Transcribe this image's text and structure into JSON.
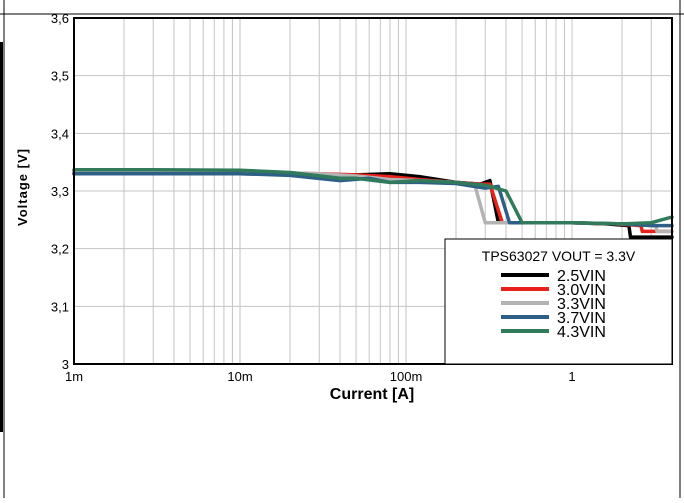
{
  "chart_data": {
    "type": "line",
    "xscale": "log",
    "xlabel": "Current [A]",
    "ylabel": "Voltage [V]",
    "xlim": [
      0.001,
      4
    ],
    "ylim": [
      3.0,
      3.6
    ],
    "grid": true,
    "x_ticks": [
      {
        "value": 0.001,
        "label": "1m"
      },
      {
        "value": 0.01,
        "label": "10m"
      },
      {
        "value": 0.1,
        "label": "100m"
      },
      {
        "value": 1,
        "label": "1"
      }
    ],
    "y_ticks": [
      {
        "value": 3.0,
        "label": "3"
      },
      {
        "value": 3.1,
        "label": "3,1"
      },
      {
        "value": 3.2,
        "label": "3,2"
      },
      {
        "value": 3.3,
        "label": "3,3"
      },
      {
        "value": 3.4,
        "label": "3,4"
      },
      {
        "value": 3.5,
        "label": "3,5"
      },
      {
        "value": 3.6,
        "label": "3,6"
      }
    ],
    "legend": {
      "title": "TPS63027 VOUT = 3.3V",
      "placement": "bottom-right"
    },
    "series": [
      {
        "name": "2.5VIN",
        "color": "#000000",
        "x": [
          0.001,
          0.003,
          0.01,
          0.03,
          0.05,
          0.08,
          0.12,
          0.2,
          0.28,
          0.32,
          0.36,
          0.5,
          1.0,
          1.6,
          2.2,
          2.25,
          3.0,
          4.0
        ],
        "y": [
          3.33,
          3.33,
          3.33,
          3.328,
          3.328,
          3.33,
          3.325,
          3.315,
          3.312,
          3.318,
          3.245,
          3.245,
          3.245,
          3.243,
          3.24,
          3.22,
          3.22,
          3.22
        ]
      },
      {
        "name": "3.0VIN",
        "color": "#e8211c",
        "x": [
          0.001,
          0.003,
          0.01,
          0.03,
          0.05,
          0.08,
          0.12,
          0.2,
          0.28,
          0.32,
          0.38,
          0.5,
          1.0,
          1.8,
          2.6,
          2.65,
          3.2,
          4.0
        ],
        "y": [
          3.333,
          3.333,
          3.333,
          3.33,
          3.328,
          3.325,
          3.32,
          3.315,
          3.312,
          3.312,
          3.245,
          3.245,
          3.245,
          3.243,
          3.24,
          3.23,
          3.23,
          3.23
        ]
      },
      {
        "name": "3.3VIN",
        "color": "#b3b3b3",
        "x": [
          0.001,
          0.003,
          0.01,
          0.03,
          0.05,
          0.08,
          0.12,
          0.2,
          0.26,
          0.3,
          0.5,
          1.0,
          2.0,
          3.2,
          3.25,
          4.0
        ],
        "y": [
          3.335,
          3.335,
          3.334,
          3.33,
          3.326,
          3.32,
          3.318,
          3.315,
          3.31,
          3.245,
          3.245,
          3.245,
          3.243,
          3.24,
          3.23,
          3.23
        ]
      },
      {
        "name": "3.7VIN",
        "color": "#2e5f86",
        "x": [
          0.001,
          0.003,
          0.01,
          0.02,
          0.04,
          0.06,
          0.08,
          0.12,
          0.2,
          0.3,
          0.36,
          0.42,
          0.5,
          1.0,
          2.0,
          3.0,
          4.0
        ],
        "y": [
          3.33,
          3.33,
          3.33,
          3.327,
          3.318,
          3.322,
          3.315,
          3.315,
          3.313,
          3.305,
          3.308,
          3.245,
          3.245,
          3.245,
          3.243,
          3.24,
          3.24
        ]
      },
      {
        "name": "4.3VIN",
        "color": "#317a5c",
        "x": [
          0.001,
          0.003,
          0.01,
          0.02,
          0.04,
          0.05,
          0.08,
          0.12,
          0.2,
          0.3,
          0.4,
          0.5,
          1.0,
          2.0,
          3.0,
          4.0
        ],
        "y": [
          3.337,
          3.337,
          3.336,
          3.332,
          3.322,
          3.322,
          3.315,
          3.318,
          3.315,
          3.31,
          3.3,
          3.245,
          3.245,
          3.243,
          3.245,
          3.255
        ]
      }
    ]
  }
}
